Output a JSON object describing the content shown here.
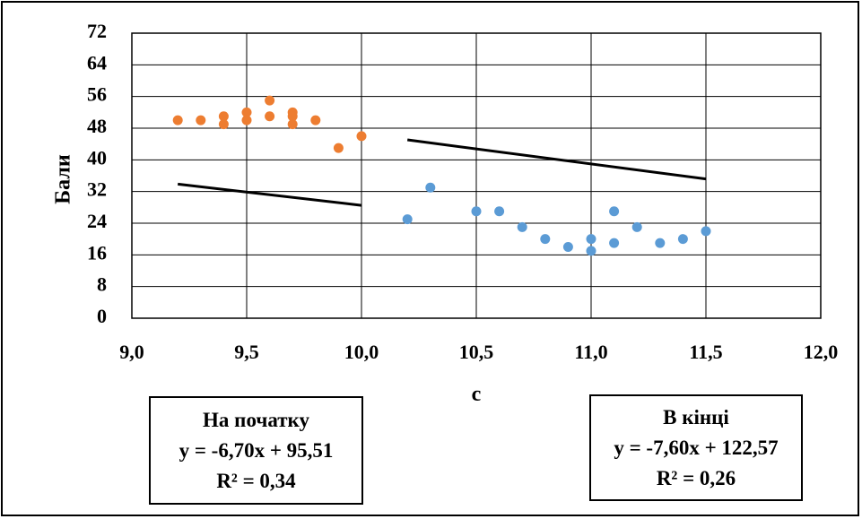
{
  "chart_data": {
    "type": "scatter",
    "xlabel": "с",
    "ylabel": "Бали",
    "xlim": [
      9.0,
      12.0
    ],
    "ylim": [
      0,
      72
    ],
    "x_ticks": [
      "9,0",
      "9,5",
      "10,0",
      "10,5",
      "11,0",
      "11,5",
      "12,0"
    ],
    "y_ticks": [
      "0",
      "8",
      "16",
      "24",
      "32",
      "40",
      "48",
      "56",
      "64",
      "72"
    ],
    "grid": true,
    "series": [
      {
        "name": "На початку",
        "color": "#ED7D31",
        "points": [
          [
            9.2,
            50
          ],
          [
            9.3,
            50
          ],
          [
            9.4,
            51
          ],
          [
            9.4,
            49
          ],
          [
            9.5,
            52
          ],
          [
            9.5,
            50
          ],
          [
            9.6,
            55
          ],
          [
            9.6,
            51
          ],
          [
            9.7,
            52
          ],
          [
            9.7,
            51
          ],
          [
            9.7,
            49
          ],
          [
            9.8,
            50
          ],
          [
            9.9,
            43
          ],
          [
            10.0,
            46
          ]
        ],
        "trendline": {
          "slope": -6.7,
          "intercept": 95.51,
          "x_range": [
            9.2,
            10.0
          ]
        },
        "equation": "y = -6,70x + 95,51",
        "r2": "R² = 0,34"
      },
      {
        "name": "В кінці",
        "color": "#5B9BD5",
        "points": [
          [
            10.2,
            25
          ],
          [
            10.3,
            33
          ],
          [
            10.5,
            27
          ],
          [
            10.6,
            27
          ],
          [
            10.7,
            23
          ],
          [
            10.8,
            20
          ],
          [
            10.9,
            18
          ],
          [
            11.0,
            20
          ],
          [
            11.0,
            17
          ],
          [
            11.1,
            27
          ],
          [
            11.1,
            19
          ],
          [
            11.2,
            23
          ],
          [
            11.3,
            19
          ],
          [
            11.4,
            20
          ],
          [
            11.5,
            22
          ]
        ],
        "trendline": {
          "slope": -7.6,
          "intercept": 122.57,
          "x_range": [
            10.2,
            11.5
          ]
        },
        "equation": "y = -7,60x + 122,57",
        "r2": "R² = 0,26"
      }
    ]
  }
}
